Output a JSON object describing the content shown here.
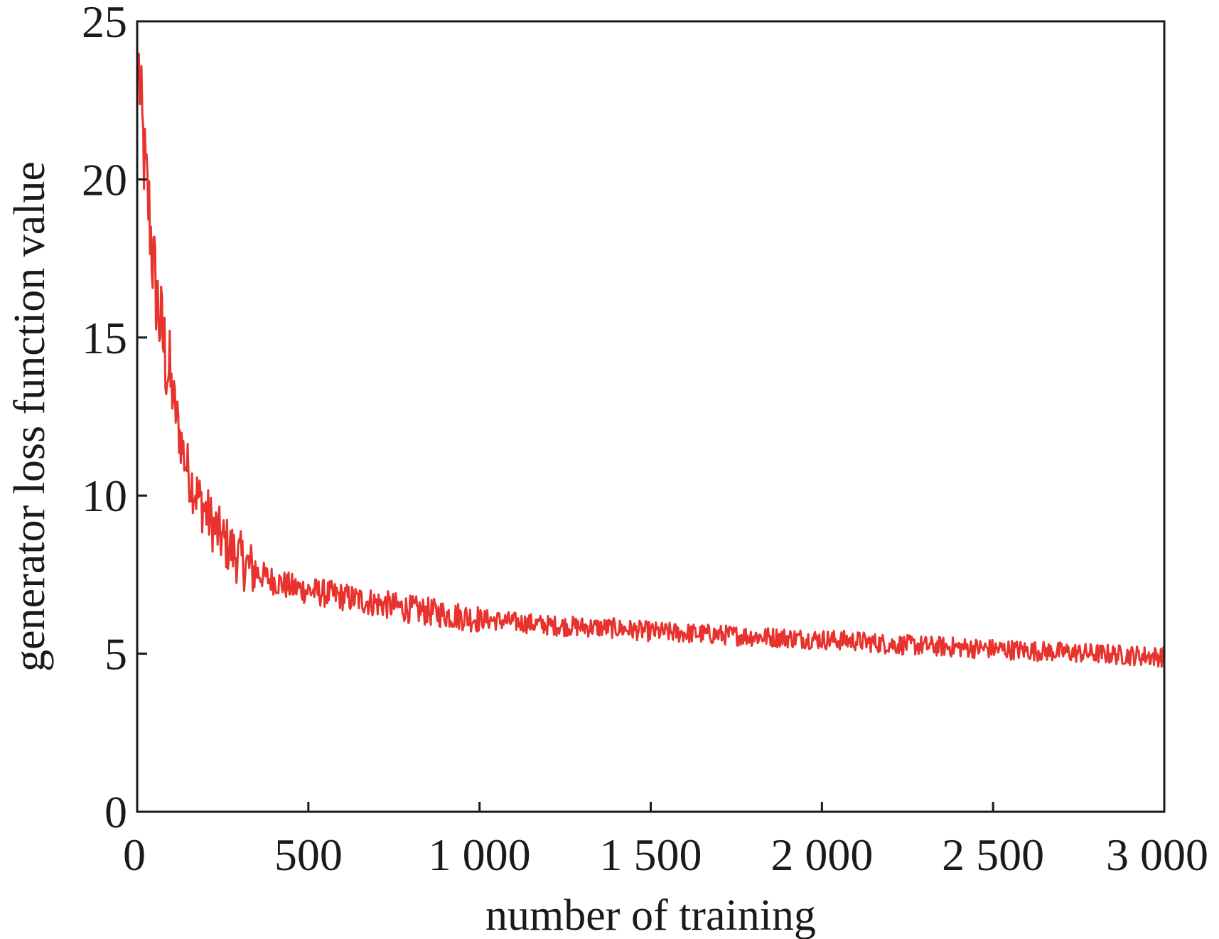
{
  "chart_data": {
    "type": "line",
    "title": "",
    "xlabel": "number of training",
    "ylabel": "generator loss function value",
    "xlim": [
      0,
      3000
    ],
    "ylim": [
      0,
      25
    ],
    "x_ticks": [
      0,
      500,
      1000,
      1500,
      2000,
      2500,
      3000
    ],
    "x_tick_labels": [
      "0",
      "500",
      "1 000",
      "1 500",
      "2 000",
      "2 500",
      "3 000"
    ],
    "y_ticks": [
      0,
      5,
      10,
      15,
      20,
      25
    ],
    "y_tick_labels": [
      "0",
      "5",
      "10",
      "15",
      "20",
      "25"
    ],
    "grid": false,
    "legend": "none",
    "series": [
      {
        "color": "#e8322e",
        "x": [
          5,
          15,
          25,
          35,
          45,
          55,
          65,
          80,
          95,
          110,
          125,
          140,
          160,
          180,
          200,
          225,
          250,
          275,
          300,
          330,
          360,
          400,
          450,
          500,
          550,
          600,
          650,
          700,
          750,
          800,
          900,
          1000,
          1100,
          1200,
          1300,
          1400,
          1500,
          1600,
          1700,
          1800,
          1900,
          2000,
          2100,
          2200,
          2300,
          2400,
          2500,
          2600,
          2700,
          2800,
          2900,
          3000
        ],
        "values": [
          23.5,
          21.5,
          20.0,
          19.0,
          17.5,
          16.5,
          15.6,
          14.6,
          13.7,
          12.8,
          11.9,
          11.1,
          10.4,
          9.9,
          9.5,
          9.0,
          8.6,
          8.3,
          8.0,
          7.7,
          7.5,
          7.3,
          7.1,
          7.0,
          6.9,
          6.8,
          6.7,
          6.6,
          6.5,
          6.4,
          6.25,
          6.1,
          6.0,
          5.9,
          5.85,
          5.8,
          5.7,
          5.65,
          5.6,
          5.55,
          5.5,
          5.45,
          5.4,
          5.3,
          5.25,
          5.2,
          5.15,
          5.1,
          5.05,
          5.0,
          4.95,
          4.9
        ]
      }
    ]
  }
}
